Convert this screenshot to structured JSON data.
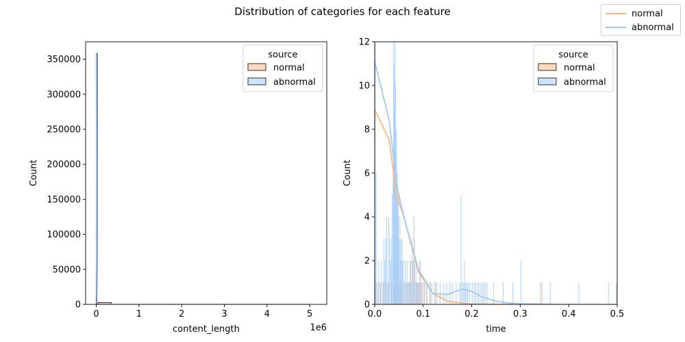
{
  "figure": {
    "title": "Distribution of categories for each feature",
    "legend": {
      "position": "top-right",
      "entries": [
        {
          "label": "normal",
          "color": "#ffb482"
        },
        {
          "label": "abnormal",
          "color": "#a1c9f4"
        }
      ]
    }
  },
  "chart_data": [
    {
      "type": "bar",
      "subtype": "histogram with kde",
      "xlabel": "content_length",
      "ylabel": "Count",
      "x_offset_text": "1e6",
      "xlim": [
        -0.25,
        5.4
      ],
      "ylim": [
        0,
        375000
      ],
      "x_ticks": [
        0,
        1,
        2,
        3,
        4,
        5
      ],
      "x_tick_labels": [
        "0",
        "1",
        "2",
        "3",
        "4",
        "5"
      ],
      "y_ticks": [
        0,
        50000,
        100000,
        150000,
        200000,
        250000,
        300000,
        350000
      ],
      "y_tick_labels": [
        "0",
        "50000",
        "100000",
        "150000",
        "200000",
        "250000",
        "300000",
        "350000"
      ],
      "grid": false,
      "legend": {
        "title": "source",
        "position": "top-right",
        "entries": [
          "normal",
          "abnormal"
        ]
      },
      "series": [
        {
          "name": "normal",
          "color": "#ffb482",
          "bins": [
            {
              "x0": 0.0,
              "x1": 0.05,
              "count": 3000
            },
            {
              "x0": 0.05,
              "x1": 0.35,
              "count": 2500
            }
          ],
          "kde": {
            "x": [
              0,
              0.01,
              0.03,
              0.05,
              0.1,
              0.3,
              1,
              5
            ],
            "y": [
              4000,
              3500,
              1200,
              300,
              50,
              0,
              0,
              0
            ]
          }
        },
        {
          "name": "abnormal",
          "color": "#a1c9f4",
          "bins": [
            {
              "x0": 0.0,
              "x1": 0.02,
              "count": 358000
            }
          ],
          "kde": {
            "x": [
              0,
              0.005,
              0.01,
              0.015,
              0.02,
              0.03,
              0.05,
              0.1,
              0.5,
              1,
              2,
              3,
              4,
              5
            ],
            "y": [
              358000,
              200000,
              60000,
              15000,
              5000,
              1000,
              200,
              50,
              0,
              0,
              0,
              0,
              0,
              0
            ]
          }
        }
      ]
    },
    {
      "type": "bar",
      "subtype": "histogram with kde",
      "xlabel": "time",
      "ylabel": "Count",
      "xlim": [
        0,
        0.5
      ],
      "ylim": [
        0,
        12
      ],
      "x_ticks": [
        0,
        0.1,
        0.2,
        0.3,
        0.4,
        0.5
      ],
      "x_tick_labels": [
        "0.0",
        "0.1",
        "0.2",
        "0.3",
        "0.4",
        "0.5"
      ],
      "y_ticks": [
        0,
        2,
        4,
        6,
        8,
        10,
        12
      ],
      "y_tick_labels": [
        "0",
        "2",
        "4",
        "6",
        "8",
        "10",
        "12"
      ],
      "grid": false,
      "legend": {
        "title": "source",
        "position": "top-right",
        "entries": [
          "normal",
          "abnormal"
        ]
      },
      "series": [
        {
          "name": "normal",
          "color": "#ffb482",
          "bars": [
            [
              0.002,
              1
            ],
            [
              0.008,
              1
            ],
            [
              0.012,
              1
            ],
            [
              0.018,
              1
            ],
            [
              0.022,
              1
            ],
            [
              0.028,
              1
            ],
            [
              0.035,
              1
            ],
            [
              0.041,
              1
            ],
            [
              0.046,
              2
            ],
            [
              0.051,
              1
            ],
            [
              0.055,
              1
            ],
            [
              0.061,
              1
            ],
            [
              0.066,
              1
            ],
            [
              0.071,
              1
            ],
            [
              0.074,
              2
            ],
            [
              0.077,
              1
            ],
            [
              0.079,
              2
            ],
            [
              0.082,
              3
            ],
            [
              0.086,
              1
            ],
            [
              0.088,
              1
            ],
            [
              0.091,
              1
            ],
            [
              0.094,
              2
            ],
            [
              0.097,
              1
            ],
            [
              0.102,
              1
            ],
            [
              0.108,
              1
            ],
            [
              0.115,
              1
            ],
            [
              0.125,
              1
            ],
            [
              0.345,
              1
            ]
          ],
          "kde": {
            "x": [
              0,
              0.03,
              0.045,
              0.06,
              0.09,
              0.12,
              0.15,
              0.18,
              0.2,
              0.25,
              0.3,
              0.5
            ],
            "y": [
              8.9,
              7.5,
              5.0,
              4.0,
              1.5,
              0.5,
              0.15,
              0.05,
              0.02,
              0.01,
              0,
              0
            ]
          }
        },
        {
          "name": "abnormal",
          "color": "#a1c9f4",
          "bars": [
            [
              0.001,
              12
            ],
            [
              0.003,
              6
            ],
            [
              0.005,
              1
            ],
            [
              0.008,
              2
            ],
            [
              0.011,
              1
            ],
            [
              0.014,
              2
            ],
            [
              0.017,
              1
            ],
            [
              0.019,
              3
            ],
            [
              0.021,
              2
            ],
            [
              0.023,
              3
            ],
            [
              0.025,
              4
            ],
            [
              0.027,
              1
            ],
            [
              0.029,
              4
            ],
            [
              0.031,
              3
            ],
            [
              0.033,
              2
            ],
            [
              0.035,
              3
            ],
            [
              0.036,
              5
            ],
            [
              0.038,
              6
            ],
            [
              0.039,
              12
            ],
            [
              0.04,
              11
            ],
            [
              0.041,
              9
            ],
            [
              0.042,
              12
            ],
            [
              0.043,
              10
            ],
            [
              0.044,
              7
            ],
            [
              0.045,
              8
            ],
            [
              0.046,
              5
            ],
            [
              0.047,
              6
            ],
            [
              0.048,
              4
            ],
            [
              0.049,
              5
            ],
            [
              0.05,
              3
            ],
            [
              0.052,
              4
            ],
            [
              0.053,
              2
            ],
            [
              0.054,
              3
            ],
            [
              0.056,
              2
            ],
            [
              0.057,
              3
            ],
            [
              0.059,
              2
            ],
            [
              0.061,
              1
            ],
            [
              0.063,
              2
            ],
            [
              0.065,
              1
            ],
            [
              0.067,
              2
            ],
            [
              0.069,
              1
            ],
            [
              0.071,
              1
            ],
            [
              0.073,
              2
            ],
            [
              0.075,
              1
            ],
            [
              0.077,
              3
            ],
            [
              0.079,
              2
            ],
            [
              0.081,
              4
            ],
            [
              0.083,
              1
            ],
            [
              0.085,
              2
            ],
            [
              0.087,
              1
            ],
            [
              0.089,
              1
            ],
            [
              0.091,
              1
            ],
            [
              0.093,
              2
            ],
            [
              0.095,
              1
            ],
            [
              0.099,
              1
            ],
            [
              0.103,
              1
            ],
            [
              0.107,
              1
            ],
            [
              0.113,
              1
            ],
            [
              0.118,
              1
            ],
            [
              0.124,
              1
            ],
            [
              0.128,
              1
            ],
            [
              0.135,
              1
            ],
            [
              0.142,
              1
            ],
            [
              0.148,
              1
            ],
            [
              0.155,
              1
            ],
            [
              0.16,
              1
            ],
            [
              0.168,
              1
            ],
            [
              0.175,
              1
            ],
            [
              0.178,
              5
            ],
            [
              0.18,
              1
            ],
            [
              0.183,
              1
            ],
            [
              0.185,
              2
            ],
            [
              0.187,
              1
            ],
            [
              0.19,
              1
            ],
            [
              0.192,
              1
            ],
            [
              0.196,
              1
            ],
            [
              0.201,
              1
            ],
            [
              0.205,
              1
            ],
            [
              0.208,
              1
            ],
            [
              0.212,
              1
            ],
            [
              0.215,
              1
            ],
            [
              0.219,
              1
            ],
            [
              0.222,
              1
            ],
            [
              0.225,
              1
            ],
            [
              0.228,
              1
            ],
            [
              0.232,
              1
            ],
            [
              0.245,
              1
            ],
            [
              0.265,
              1
            ],
            [
              0.285,
              1
            ],
            [
              0.302,
              2
            ],
            [
              0.342,
              1
            ],
            [
              0.362,
              1
            ],
            [
              0.421,
              1
            ],
            [
              0.482,
              1
            ],
            [
              0.498,
              1
            ]
          ],
          "kde": {
            "x": [
              0,
              0.03,
              0.045,
              0.06,
              0.09,
              0.12,
              0.15,
              0.18,
              0.2,
              0.22,
              0.25,
              0.28,
              0.3,
              0.35,
              0.4,
              0.5
            ],
            "y": [
              11.1,
              8.4,
              5.5,
              4.0,
              1.6,
              0.5,
              0.45,
              0.7,
              0.6,
              0.35,
              0.15,
              0.05,
              0.03,
              0.01,
              0,
              0
            ]
          }
        }
      ]
    }
  ]
}
